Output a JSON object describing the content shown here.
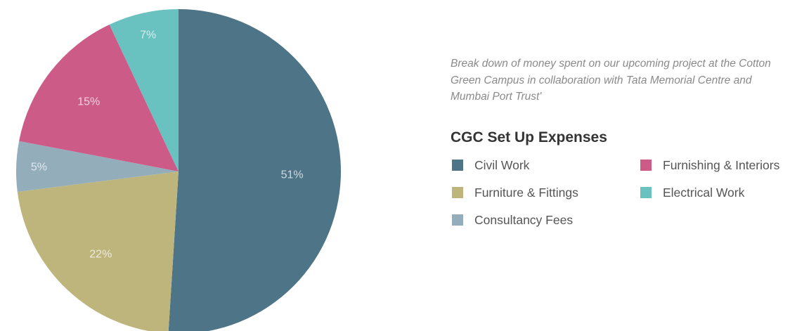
{
  "chart_data": {
    "type": "pie",
    "title": "CGC Set Up Expenses",
    "description": "Break down of money spent on our upcoming project at the Cotton Green Campus in collaboration with Tata Memorial Centre and Mumbai Port Trust'",
    "legend_placement": "right",
    "slices": [
      {
        "name": "Civil Work",
        "value": 51,
        "label": "51%",
        "color": "#4e7487"
      },
      {
        "name": "Furniture & Fittings",
        "value": 22,
        "label": "22%",
        "color": "#bdb57c"
      },
      {
        "name": "Consultancy Fees",
        "value": 5,
        "label": "5%",
        "color": "#93adbb"
      },
      {
        "name": "Furnishing & Interiors",
        "value": 15,
        "label": "15%",
        "color": "#cc5b88"
      },
      {
        "name": "Electrical Work",
        "value": 7,
        "label": "7%",
        "color": "#69c2c0"
      }
    ],
    "legend_order": [
      "Civil Work",
      "Furnishing & Interiors",
      "Furniture & Fittings",
      "Electrical Work",
      "Consultancy Fees"
    ]
  }
}
